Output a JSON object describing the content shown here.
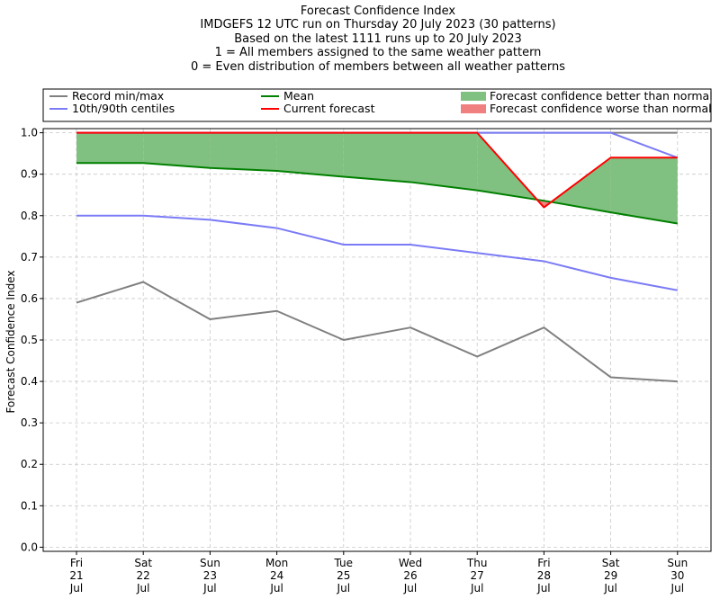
{
  "chart_data": {
    "type": "line",
    "title_lines": [
      "Forecast Confidence Index",
      "IMDGEFS 12 UTC run on Thursday 20 July 2023 (30 patterns)",
      "Based on the latest 1111 runs up to 20 July 2023",
      "1 = All members assigned to the same weather pattern",
      "0 = Even distribution of members between all weather patterns"
    ],
    "ylabel": "Forecast Confidence Index",
    "xlabel": "",
    "ylim": [
      -0.01,
      1.01
    ],
    "yticks": [
      "0.0",
      "0.1",
      "0.2",
      "0.3",
      "0.4",
      "0.5",
      "0.6",
      "0.7",
      "0.8",
      "0.9",
      "1.0"
    ],
    "grid": true,
    "legend_position": "top",
    "categories": [
      [
        "Fri",
        "21",
        "Jul"
      ],
      [
        "Sat",
        "22",
        "Jul"
      ],
      [
        "Sun",
        "23",
        "Jul"
      ],
      [
        "Mon",
        "24",
        "Jul"
      ],
      [
        "Tue",
        "25",
        "Jul"
      ],
      [
        "Wed",
        "26",
        "Jul"
      ],
      [
        "Thu",
        "27",
        "Jul"
      ],
      [
        "Fri",
        "28",
        "Jul"
      ],
      [
        "Sat",
        "29",
        "Jul"
      ],
      [
        "Sun",
        "30",
        "Jul"
      ]
    ],
    "legend": [
      {
        "label": "Record min/max",
        "color": "#808080",
        "kind": "line"
      },
      {
        "label": "10th/90th centiles",
        "color": "#7b7bf7",
        "kind": "line"
      },
      {
        "label": "Mean",
        "color": "#008000",
        "kind": "line"
      },
      {
        "label": "Current forecast",
        "color": "#ff0000",
        "kind": "line"
      },
      {
        "label": "Forecast confidence better than normal",
        "color": "#80c080",
        "kind": "patch"
      },
      {
        "label": "Forecast confidence worse than normal",
        "color": "#f08080",
        "kind": "patch"
      }
    ],
    "series": [
      {
        "key": "record_max",
        "color": "#808080",
        "values": [
          1.0,
          1.0,
          1.0,
          1.0,
          1.0,
          1.0,
          1.0,
          1.0,
          1.0,
          1.0
        ]
      },
      {
        "key": "record_min",
        "color": "#808080",
        "values": [
          0.59,
          0.64,
          0.55,
          0.57,
          0.5,
          0.53,
          0.46,
          0.53,
          0.41,
          0.4
        ]
      },
      {
        "key": "p90",
        "color": "#7b7bf7",
        "values": [
          1.0,
          1.0,
          1.0,
          1.0,
          1.0,
          1.0,
          1.0,
          1.0,
          1.0,
          0.94
        ]
      },
      {
        "key": "p10",
        "color": "#7b7bf7",
        "values": [
          0.8,
          0.8,
          0.79,
          0.77,
          0.73,
          0.73,
          0.71,
          0.69,
          0.65,
          0.62
        ]
      },
      {
        "key": "mean",
        "color": "#008000",
        "values": [
          0.927,
          0.927,
          0.915,
          0.908,
          0.894,
          0.881,
          0.861,
          0.836,
          0.808,
          0.781
        ]
      },
      {
        "key": "current",
        "color": "#ff0000",
        "values": [
          1.0,
          1.0,
          1.0,
          1.0,
          1.0,
          1.0,
          1.0,
          0.82,
          0.94,
          0.94
        ]
      }
    ]
  }
}
